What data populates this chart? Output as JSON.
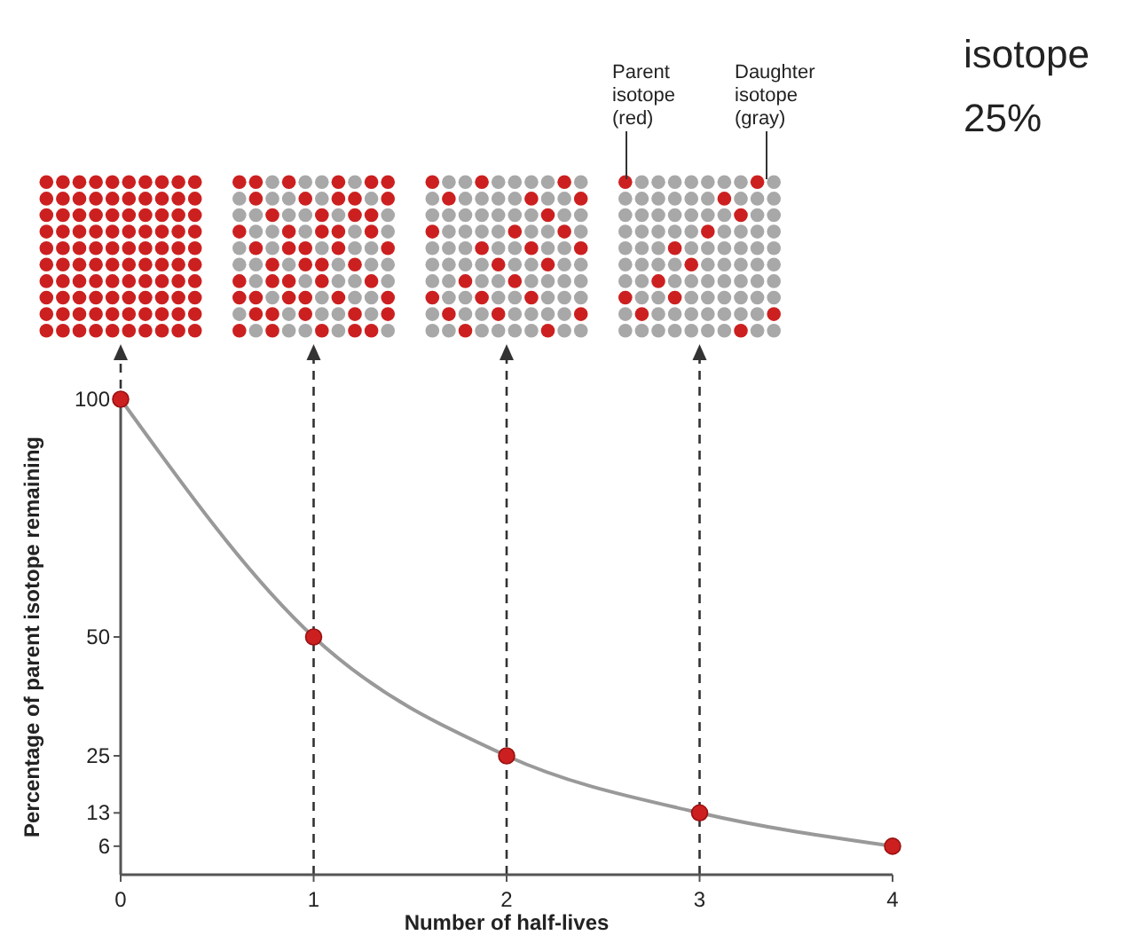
{
  "chart_data": {
    "type": "line",
    "xlabel": "Number of half-lives",
    "ylabel": "Percentage of parent isotope remaining",
    "x": [
      0,
      1,
      2,
      3,
      4
    ],
    "series": [
      {
        "color": "#999999",
        "colors": [
          "#cc2020",
          "#cc2020",
          "#cc2020",
          "#cc2020",
          "#cc2020"
        ],
        "values": [
          100,
          50,
          25,
          13,
          6
        ]
      }
    ],
    "xlim": [
      0,
      4
    ],
    "xticks": [
      0,
      1,
      2,
      3,
      4
    ],
    "ylim": [
      0,
      100
    ],
    "yticks": [
      6,
      13,
      25,
      50,
      100
    ],
    "marker": "circle",
    "grid": false,
    "ref_lines": [
      {
        "axis": "x",
        "value": 1,
        "line_style": "dashed",
        "color": "#333333"
      },
      {
        "axis": "x",
        "value": 2,
        "line_style": "dashed",
        "color": "#333333"
      },
      {
        "axis": "x",
        "value": 3,
        "line_style": "dashed",
        "color": "#333333"
      }
    ],
    "annotations": [
      "Parent isotope (red)",
      "Daughter isotope (gray)",
      "isotope",
      "25%"
    ]
  }
}
